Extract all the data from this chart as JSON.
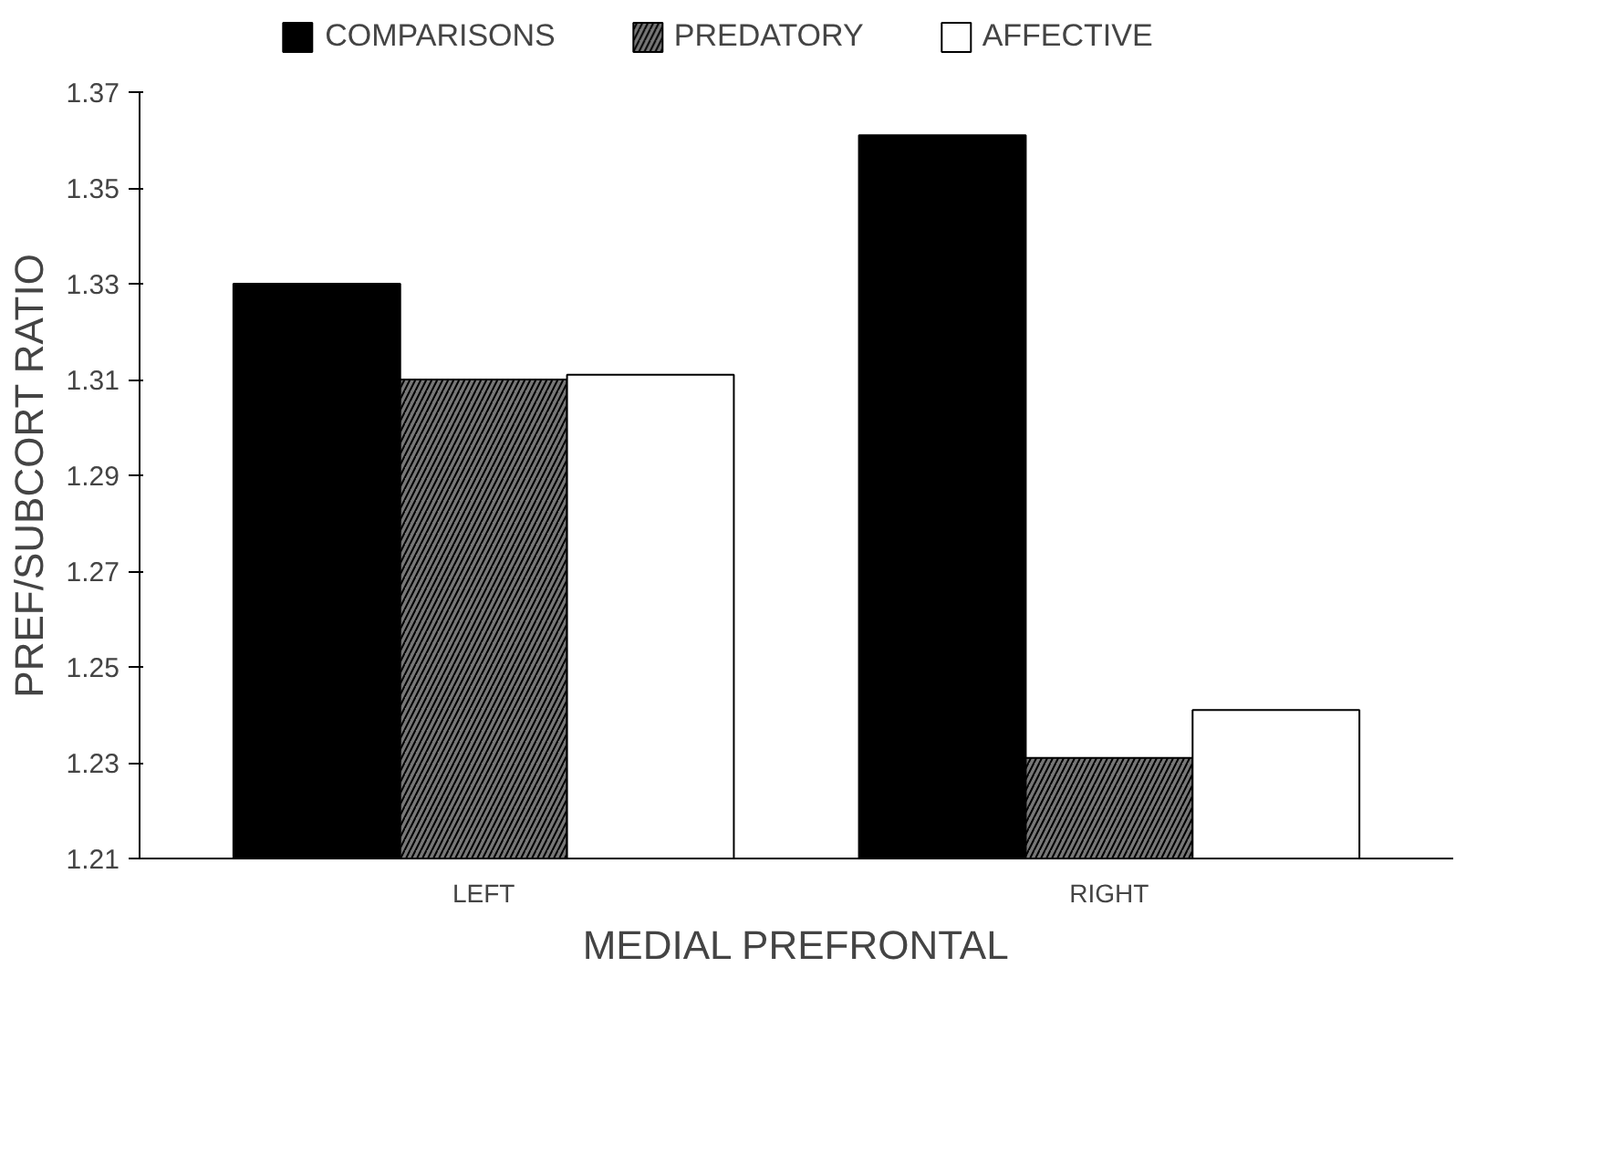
{
  "chart_data": {
    "type": "bar",
    "xlabel": "MEDIAL PREFRONTAL",
    "ylabel": "PREF/SUBCORT RATIO",
    "categories": [
      "LEFT",
      "RIGHT"
    ],
    "series": [
      {
        "name": "COMPARISONS",
        "color": "#000000",
        "values": [
          1.33,
          1.361
        ]
      },
      {
        "name": "PREDATORY",
        "color": "#777777",
        "values": [
          1.31,
          1.231
        ]
      },
      {
        "name": "AFFECTIVE",
        "color": "#ffffff",
        "values": [
          1.311,
          1.241
        ]
      }
    ],
    "ylim": [
      1.21,
      1.37
    ],
    "yticks": [
      1.21,
      1.23,
      1.25,
      1.27,
      1.29,
      1.31,
      1.33,
      1.35,
      1.37
    ],
    "grid": false,
    "legend": "top"
  }
}
